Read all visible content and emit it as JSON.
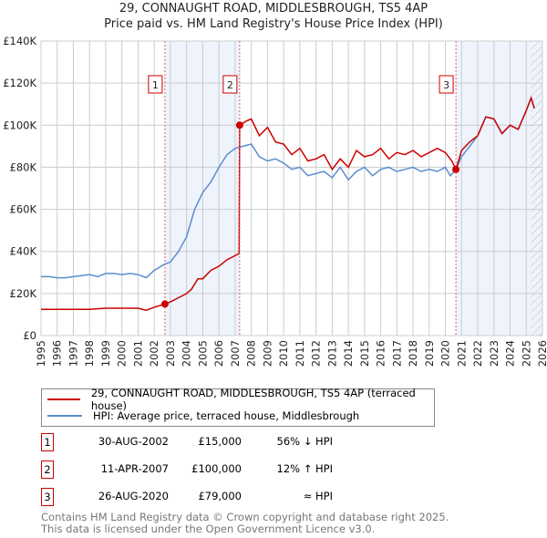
{
  "title_line1": "29, CONNAUGHT ROAD, MIDDLESBROUGH, TS5 4AP",
  "title_line2": "Price paid vs. HM Land Registry's House Price Index (HPI)",
  "legend": {
    "property": "29, CONNAUGHT ROAD, MIDDLESBROUGH, TS5 4AP (terraced house)",
    "hpi": "HPI: Average price, terraced house, Middlesbrough"
  },
  "colors": {
    "property": "#cc0000",
    "hpi": "#5b8dd0",
    "shade": "#eef3fc",
    "grid": "#cccccc"
  },
  "sales": [
    {
      "num": "1",
      "date": "30-AUG-2002",
      "price": "£15,000",
      "hpi": "56% ↓ HPI",
      "year": 2002.66,
      "value": 15
    },
    {
      "num": "2",
      "date": "11-APR-2007",
      "price": "£100,000",
      "hpi": "12% ↑ HPI",
      "year": 2007.28,
      "value": 100
    },
    {
      "num": "3",
      "date": "26-AUG-2020",
      "price": "£79,000",
      "hpi": "≈ HPI",
      "year": 2020.65,
      "value": 79
    }
  ],
  "footer_line1": "Contains HM Land Registry data © Crown copyright and database right 2025.",
  "footer_line2": "This data is licensed under the Open Government Licence v3.0.",
  "chart_data": {
    "type": "line",
    "title": "29, CONNAUGHT ROAD, MIDDLESBROUGH, TS5 4AP",
    "xlim": [
      1995,
      2026
    ],
    "ylim": [
      0,
      140
    ],
    "y_ticks": [
      0,
      20,
      40,
      60,
      80,
      100,
      120,
      140
    ],
    "y_tick_labels": [
      "£0",
      "£20K",
      "£40K",
      "£60K",
      "£80K",
      "£100K",
      "£120K",
      "£140K"
    ],
    "x_ticks": [
      1995,
      1996,
      1997,
      1998,
      1999,
      2000,
      2001,
      2002,
      2003,
      2004,
      2005,
      2006,
      2007,
      2008,
      2009,
      2010,
      2011,
      2012,
      2013,
      2014,
      2015,
      2016,
      2017,
      2018,
      2019,
      2020,
      2021,
      2022,
      2023,
      2024,
      2025,
      2026
    ],
    "shaded_ranges": [
      [
        2002.66,
        2007.28
      ],
      [
        2020.65,
        2026
      ]
    ],
    "hatched_from": 2025.3,
    "series": [
      {
        "name": "HPI: Average price, terraced house, Middlesbrough",
        "unit": "£K",
        "x": [
          1995,
          1995.5,
          1996,
          1996.5,
          1997,
          1997.5,
          1998,
          1998.5,
          1999,
          1999.5,
          2000,
          2000.5,
          2001,
          2001.5,
          2002,
          2002.66,
          2003,
          2003.5,
          2004,
          2004.5,
          2005,
          2005.5,
          2006,
          2006.5,
          2007,
          2007.5,
          2008,
          2008.5,
          2009,
          2009.5,
          2010,
          2010.5,
          2011,
          2011.5,
          2012,
          2012.5,
          2013,
          2013.5,
          2014,
          2014.5,
          2015,
          2015.5,
          2016,
          2016.5,
          2017,
          2017.5,
          2018,
          2018.5,
          2019,
          2019.5,
          2020,
          2020.3,
          2020.65,
          2021,
          2021.5,
          2022,
          2022.5,
          2023,
          2023.5,
          2024,
          2024.5,
          2025,
          2025.3,
          2025.5
        ],
        "y": [
          28,
          28,
          27.5,
          27.5,
          28,
          28.5,
          29,
          28,
          29.5,
          29.5,
          29,
          29.5,
          29,
          27.5,
          31,
          34,
          35,
          40,
          47,
          60,
          68,
          73,
          80,
          86,
          89,
          90,
          91,
          85,
          83,
          84,
          82,
          79,
          80,
          76,
          77,
          78,
          75,
          80,
          74,
          78,
          80,
          76,
          79,
          80,
          78,
          79,
          80,
          78,
          79,
          78,
          80,
          76,
          79,
          85,
          90,
          95,
          104,
          103,
          96,
          100,
          98,
          107,
          113,
          108
        ]
      },
      {
        "name": "29, CONNAUGHT ROAD, MIDDLESBROUGH, TS5 4AP (terraced house)",
        "unit": "£K",
        "x": [
          1995,
          1996,
          1997,
          1998,
          1999,
          2000,
          2001,
          2001.5,
          2002,
          2002.66,
          2003,
          2003.5,
          2004,
          2004.3,
          2004.7,
          2005,
          2005.5,
          2006,
          2006.5,
          2007.25,
          2007.28,
          2007.7,
          2008,
          2008.5,
          2009,
          2009.5,
          2010,
          2010.5,
          2011,
          2011.5,
          2012,
          2012.5,
          2013,
          2013.5,
          2014,
          2014.5,
          2015,
          2015.5,
          2016,
          2016.5,
          2017,
          2017.5,
          2018,
          2018.5,
          2019,
          2019.5,
          2020,
          2020.4,
          2020.65,
          2021,
          2021.5,
          2022,
          2022.5,
          2023,
          2023.5,
          2024,
          2024.5,
          2025,
          2025.3,
          2025.5
        ],
        "y": [
          12.5,
          12.5,
          12.5,
          12.5,
          13,
          13,
          13,
          12,
          13.5,
          15,
          16,
          18,
          20,
          22,
          27,
          27,
          31,
          33,
          36,
          39,
          100,
          102,
          103,
          95,
          99,
          92,
          91,
          86,
          89,
          83,
          84,
          86,
          79,
          84,
          80,
          88,
          85,
          86,
          89,
          84,
          87,
          86,
          88,
          85,
          87,
          89,
          87,
          83,
          79,
          88,
          92,
          95,
          104,
          103,
          96,
          100,
          98,
          107,
          113,
          108
        ]
      }
    ]
  }
}
